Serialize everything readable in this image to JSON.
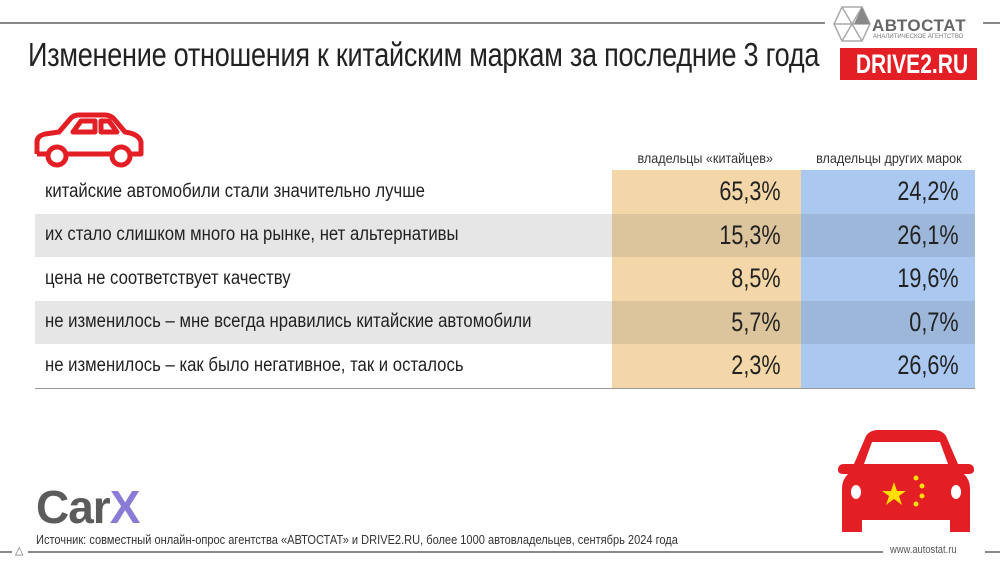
{
  "header": {
    "title": "Изменение отношения к китайским маркам за последние 3 года"
  },
  "logos": {
    "autostat_name": "АВТОСТАТ",
    "autostat_sub": "АНАЛИТИЧЕСКОЕ АГЕНТСТВО",
    "drive2": "DRIVE2.RU",
    "carx_main": "Car",
    "carx_x": "X"
  },
  "colors": {
    "brand_red": "#e31e24",
    "chinese_owners_col": "#f4d7a8",
    "other_owners_col": "#aac8f0",
    "carx_accent": "#8a7bd6"
  },
  "chart_data": {
    "type": "table",
    "columns": [
      "владельцы «китайцев»",
      "владельцы других марок"
    ],
    "rows": [
      {
        "label": "китайские автомобили стали значительно лучше",
        "values": [
          "65,3%",
          "24,2%"
        ]
      },
      {
        "label": "их стало слишком много на рынке, нет альтернативы",
        "values": [
          "15,3%",
          "26,1%"
        ]
      },
      {
        "label": "цена не соответствует качеству",
        "values": [
          "8,5%",
          "19,6%"
        ]
      },
      {
        "label": "не изменилось – мне всегда нравились китайские автомобили",
        "values": [
          "5,7%",
          "0,7%"
        ]
      },
      {
        "label": "не изменилось – как было негативное, так и осталось",
        "values": [
          "2,3%",
          "26,6%"
        ]
      }
    ]
  },
  "footer": {
    "source": "Источник: совместный онлайн-опрос агентства «АВТОСТАТ» и DRIVE2.RU, более 1000 автовладельцев, сентябрь 2024 года",
    "site": "www.autostat.ru",
    "icon": "triangle-logo-icon"
  }
}
